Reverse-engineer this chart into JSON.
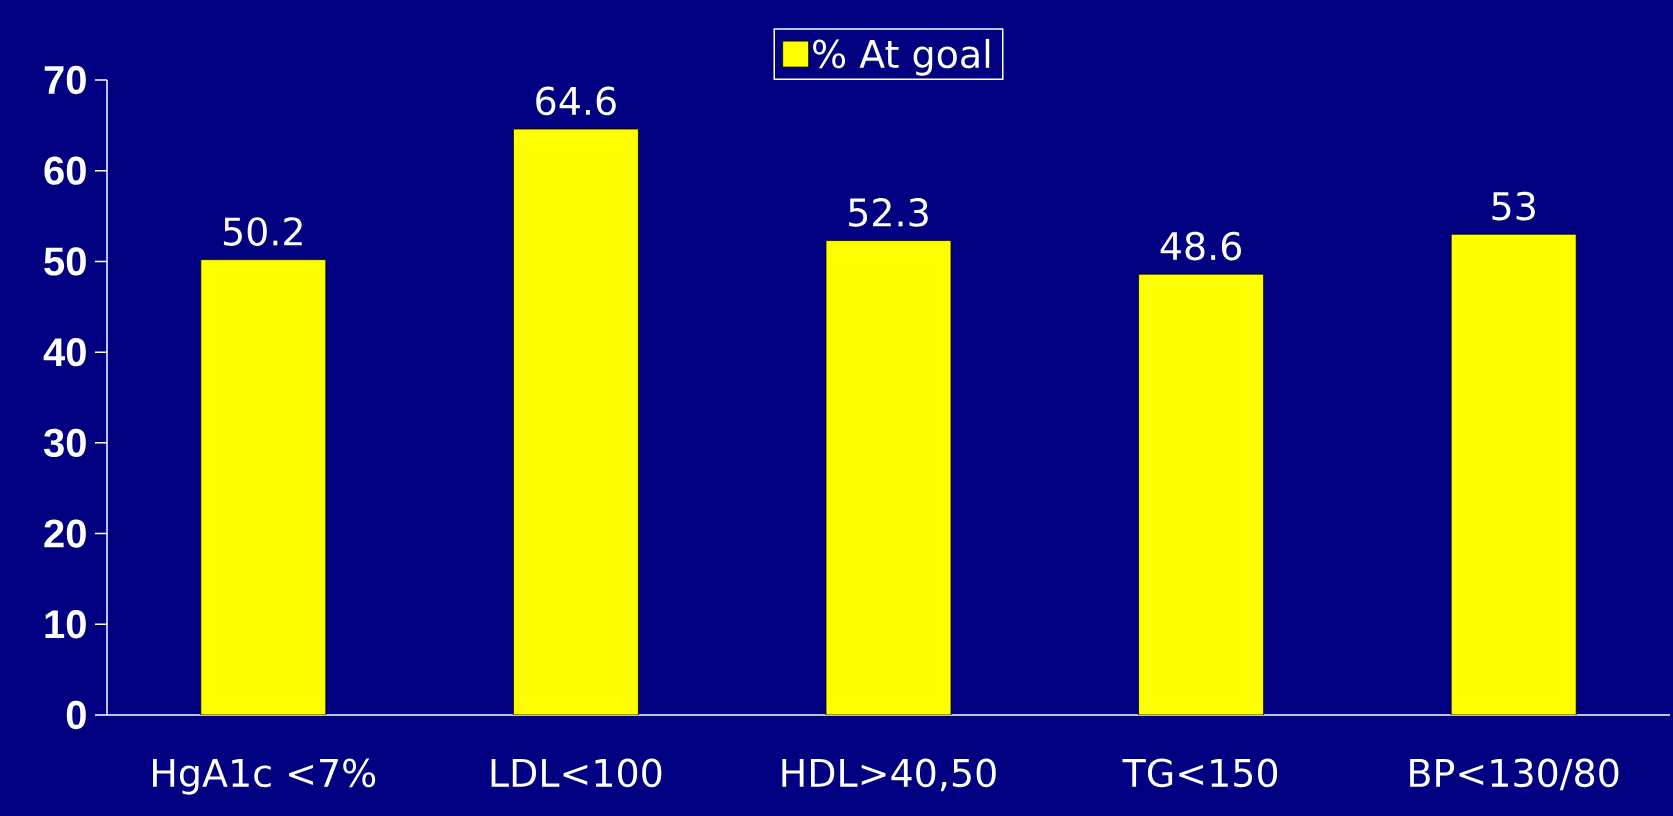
{
  "chart_data": {
    "type": "bar",
    "categories": [
      "HgA1c <7%",
      "LDL<100",
      "HDL>40,50",
      "TG<150",
      "BP<130/80"
    ],
    "series": [
      {
        "name": "% At goal",
        "color": "#ffff00",
        "values": [
          50.2,
          64.6,
          52.3,
          48.6,
          53
        ]
      }
    ],
    "ylim": [
      0,
      70
    ],
    "yticks": [
      0,
      10,
      20,
      30,
      40,
      50,
      60,
      70
    ],
    "data_labels": true,
    "legend": "top",
    "grid": false
  }
}
